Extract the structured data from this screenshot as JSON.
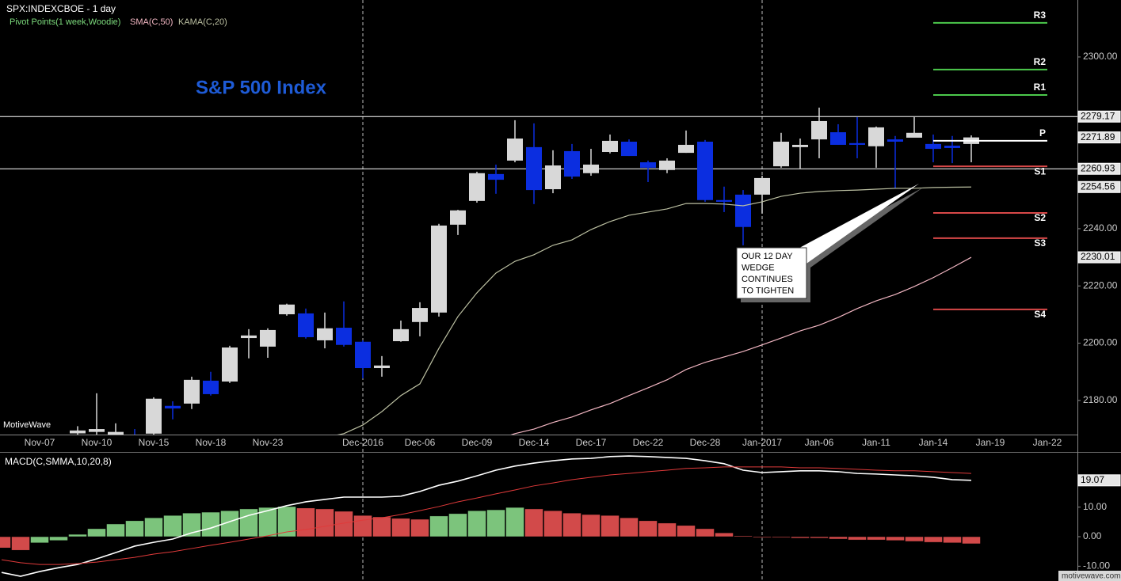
{
  "chart_data": [
    {
      "type": "candlestick",
      "header": "SPX:INDEXCBOE - 1 day",
      "title": "S&P 500 Index",
      "watermark": "MotiveWave",
      "categories": [
        null,
        null,
        "Nov-07",
        null,
        null,
        "Nov-10",
        null,
        null,
        "Nov-15",
        null,
        null,
        "Nov-18",
        null,
        null,
        "Nov-23",
        null,
        null,
        null,
        null,
        "Dec-2016",
        null,
        null,
        "Dec-06",
        null,
        null,
        "Dec-09",
        null,
        null,
        "Dec-14",
        null,
        null,
        "Dec-17",
        null,
        null,
        "Dec-22",
        null,
        null,
        "Dec-28",
        null,
        null,
        "Jan-2017",
        null,
        null,
        "Jan-06",
        null,
        null,
        "Jan-11",
        null,
        null,
        "Jan-14",
        null,
        null,
        "Jan-19",
        null,
        null,
        "Jan-22"
      ],
      "open": [
        null,
        null,
        null,
        null,
        2168.5,
        2169,
        2168,
        2168,
        2168.4,
        2178.1,
        2178.9,
        2186.9,
        2186.6,
        2201.8,
        2198.8,
        2210.1,
        2210.4,
        2201.0,
        2205.4,
        2200.5,
        2191.3,
        2200.7,
        2207.4,
        2210.7,
        2241.4,
        2249.7,
        2259.1,
        2263.8,
        2268.5,
        2253.8,
        2267.1,
        2259.4,
        2266.8,
        2270.4,
        2263.2,
        2260.5,
        2266.5,
        2270.4,
        2250.0,
        2251.9,
        2251.9,
        2261.8,
        2268.5,
        2271.2,
        2273.7,
        2269.9,
        2268.8,
        2271.2,
        2271.8,
        2269.6,
        2269.0,
        2269.6,
        null,
        null,
        null,
        null
      ],
      "high": [
        null,
        null,
        null,
        null,
        2171,
        2182.5,
        2172,
        2170,
        2181.1,
        2179.7,
        2188.3,
        2190.0,
        2199.1,
        2204.9,
        2205.2,
        2213.8,
        2212.1,
        2210.7,
        2214.6,
        2201.0,
        2195.5,
        2207.9,
        2214.3,
        2241.7,
        2246.6,
        2259.9,
        2262.4,
        2277.9,
        2276.8,
        2267.4,
        2269.6,
        2267.9,
        2272.9,
        2271.2,
        2263.8,
        2264.6,
        2274.3,
        2271.0,
        2254.7,
        2253.5,
        2258.5,
        2273.5,
        2271.5,
        2282.3,
        2276.5,
        2279.0,
        2275.7,
        2272.4,
        2279.0,
        2272.9,
        2272.4,
        2272.6,
        null,
        null,
        null,
        null
      ],
      "low": [
        null,
        null,
        null,
        null,
        2166,
        2167,
        2166,
        2165,
        2167,
        2173.4,
        2177.0,
        2181.7,
        2186.1,
        2194.7,
        2194.9,
        2209.6,
        2201.6,
        2198.2,
        2198.8,
        2187.7,
        2188.3,
        2200.5,
        2202.4,
        2209.3,
        2237.8,
        2249.1,
        2252.2,
        2263.2,
        2248.6,
        2252.4,
        2257.4,
        2258.5,
        2266.3,
        2265.4,
        2256.3,
        2259.4,
        2266.5,
        2249.4,
        2245.8,
        2234.2,
        2245.3,
        2261.3,
        2261.0,
        2264.6,
        2269.3,
        2264.6,
        2261.3,
        2254.1,
        2272.4,
        2263.2,
        2262.9,
        2263.2,
        null,
        null,
        null,
        null
      ],
      "close": [
        null,
        null,
        null,
        null,
        2169.5,
        2170,
        2169,
        2166.5,
        2180.6,
        2177.2,
        2187.2,
        2182.2,
        2198.5,
        2202.7,
        2204.6,
        2213.5,
        2202.1,
        2205.2,
        2199.4,
        2191.3,
        2192.2,
        2204.9,
        2212.3,
        2241.1,
        2246.4,
        2259.4,
        2257.1,
        2271.5,
        2253.5,
        2262.1,
        2258.2,
        2262.4,
        2270.7,
        2265.4,
        2261.3,
        2263.8,
        2269.3,
        2250.0,
        2249.4,
        2240.6,
        2257.7,
        2270.4,
        2269.3,
        2277.6,
        2269.3,
        2269.3,
        2275.4,
        2270.4,
        2273.5,
        2267.9,
        2268.2,
        2271.89,
        null,
        null,
        null,
        null
      ],
      "up_color": "#d8d8d8",
      "down_color": "#0b2ee0",
      "series": [
        {
          "name": "SMA(C,50)",
          "color": "#f2b6c2",
          "values": [
            null,
            null,
            null,
            null,
            null,
            null,
            null,
            null,
            null,
            null,
            null,
            null,
            null,
            null,
            null,
            null,
            null,
            null,
            null,
            null,
            null,
            null,
            null,
            null,
            null,
            null,
            2166.2,
            2168.4,
            2170.0,
            2172.3,
            2174.2,
            2176.7,
            2178.9,
            2181.7,
            2184.4,
            2187.2,
            2190.8,
            2193.3,
            2195.2,
            2197.1,
            2199.4,
            2201.8,
            2204.3,
            2206.3,
            2209.0,
            2212.1,
            2214.8,
            2217.0,
            2219.8,
            2222.9,
            2226.4,
            2230.01,
            null,
            null,
            null,
            null
          ]
        },
        {
          "name": "KAMA(C,20)",
          "color": "#bcc0a2",
          "values": [
            null,
            null,
            null,
            null,
            null,
            null,
            null,
            null,
            null,
            null,
            null,
            null,
            null,
            null,
            null,
            null,
            2164.5,
            2167,
            2168.4,
            2171.4,
            2176.1,
            2181.7,
            2185.8,
            2198.2,
            2209.3,
            2217.6,
            2224.5,
            2228.6,
            2230.9,
            2234.2,
            2236.1,
            2239.7,
            2242.5,
            2244.7,
            2245.8,
            2246.9,
            2248.8,
            2248.8,
            2248.6,
            2248.0,
            2249.4,
            2251.3,
            2252.4,
            2253.0,
            2253.3,
            2253.5,
            2253.8,
            2254.1,
            2254.1,
            2254.4,
            2254.5,
            2254.56,
            null,
            null,
            null,
            null
          ]
        }
      ],
      "pivots": {
        "name": "Pivot Points(1 week,Woodie)",
        "color": "#7ddc7d",
        "levels": [
          {
            "label": "R3",
            "value": 2311.9,
            "color": "#4cc94c"
          },
          {
            "label": "R2",
            "value": 2295.6,
            "color": "#4cc94c"
          },
          {
            "label": "R1",
            "value": 2286.7,
            "color": "#4cc94c"
          },
          {
            "label": "P",
            "value": 2270.7,
            "color": "#ffffff"
          },
          {
            "label": "S1",
            "value": 2261.8,
            "color": "#d84848"
          },
          {
            "label": "S2",
            "value": 2245.5,
            "color": "#d84848"
          },
          {
            "label": "S3",
            "value": 2236.7,
            "color": "#d84848"
          },
          {
            "label": "S4",
            "value": 2211.8,
            "color": "#d84848"
          }
        ]
      },
      "price_labels": [
        {
          "value": 2279.17,
          "line": true
        },
        {
          "value": 2271.89,
          "line": false
        },
        {
          "value": 2260.93,
          "line": true
        },
        {
          "value": 2254.56,
          "line": false
        },
        {
          "value": 2230.01,
          "line": false
        }
      ],
      "annotation": [
        "OUR 12 DAY",
        "WEDGE",
        "CONTINUES",
        "TO TIGHTEN"
      ],
      "ylim": [
        2167.8,
        2319.9
      ],
      "yticks": [
        {
          "value": 2180,
          "label": "2180.00"
        },
        {
          "value": 2200,
          "label": "2200.00"
        },
        {
          "value": 2220,
          "label": "2220.00"
        },
        {
          "value": 2240,
          "label": "2240.00"
        },
        {
          "value": 2300,
          "label": "2300.00"
        }
      ]
    },
    {
      "type": "macd",
      "title": "MACD(C,SMMA,10,20,8)",
      "footer": "motivewave.com",
      "histogram": {
        "up_color": "#7cc47c",
        "down_color": "#d24a4a",
        "values": [
          -3.8,
          -4.6,
          -2.1,
          -1.3,
          0.8,
          2.7,
          4.3,
          5.4,
          6.4,
          7.2,
          8.0,
          8.3,
          8.8,
          9.4,
          9.9,
          10.2,
          9.7,
          9.4,
          8.6,
          7.2,
          6.7,
          6.2,
          5.9,
          7.0,
          7.8,
          8.8,
          9.1,
          9.9,
          9.4,
          8.8,
          8.0,
          7.5,
          7.2,
          6.4,
          5.4,
          4.6,
          3.8,
          2.7,
          1.3,
          0.3,
          -0.3,
          -0.3,
          -0.5,
          -0.5,
          -0.8,
          -1.1,
          -1.1,
          -1.3,
          -1.6,
          -1.9,
          -2.1,
          -2.4,
          null,
          null,
          null,
          null
        ]
      },
      "series": [
        {
          "color": "#ffffff",
          "values": [
            -12.1,
            -13.4,
            -11.8,
            -10.5,
            -9.4,
            -7.5,
            -5.4,
            -3.2,
            -1.9,
            -0.8,
            1.3,
            2.9,
            5.1,
            7.2,
            8.8,
            10.5,
            11.8,
            12.6,
            13.4,
            13.4,
            13.4,
            13.7,
            15.3,
            17.4,
            18.8,
            20.6,
            22.5,
            23.9,
            24.9,
            25.7,
            26.3,
            26.5,
            27.1,
            27.3,
            27.1,
            26.8,
            26.5,
            25.7,
            24.7,
            22.5,
            21.7,
            22.0,
            22.3,
            22.3,
            22.0,
            21.4,
            21.2,
            20.9,
            20.6,
            20.1,
            19.3,
            19.07,
            null,
            null,
            null,
            null
          ]
        },
        {
          "color": "#e03a3a",
          "values": [
            -7.8,
            -8.8,
            -9.4,
            -9.4,
            -9.1,
            -8.6,
            -7.8,
            -7.0,
            -5.9,
            -5.1,
            -4.0,
            -2.9,
            -1.9,
            -0.8,
            0.3,
            1.6,
            2.4,
            3.5,
            4.6,
            5.6,
            6.4,
            7.5,
            8.8,
            10.2,
            11.8,
            13.1,
            14.5,
            15.8,
            17.2,
            18.2,
            19.3,
            20.1,
            20.9,
            21.4,
            22.0,
            22.5,
            23.1,
            23.3,
            23.6,
            23.6,
            23.6,
            23.6,
            23.3,
            23.3,
            23.1,
            22.8,
            22.5,
            22.3,
            22.3,
            22.0,
            21.7,
            21.4,
            null,
            null,
            null,
            null
          ]
        }
      ],
      "price_labels": [
        {
          "value": 19.07
        }
      ],
      "ylim": [
        -15,
        28.4
      ],
      "yticks": [
        {
          "value": -10,
          "label": "-10.00"
        },
        {
          "value": 0,
          "label": "0.00"
        },
        {
          "value": 10,
          "label": "10.00"
        }
      ]
    }
  ]
}
